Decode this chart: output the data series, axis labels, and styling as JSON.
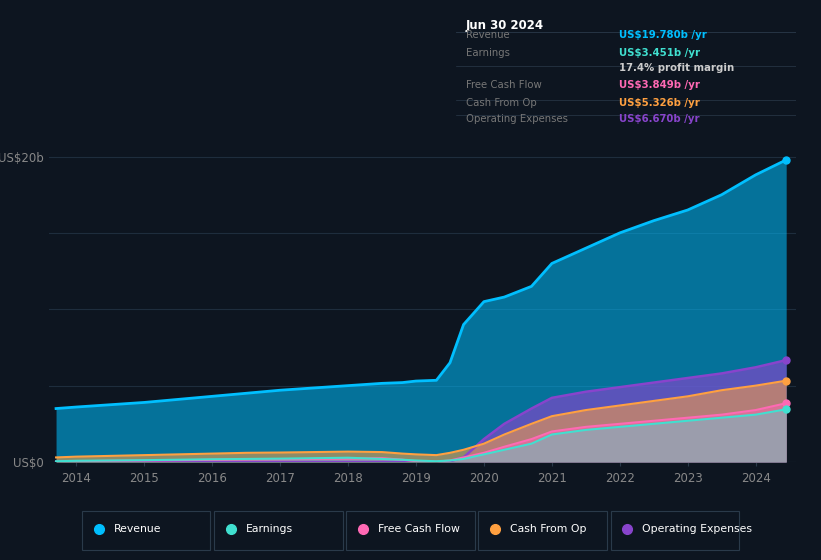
{
  "background_color": "#0d1520",
  "plot_bg_color": "#0d1520",
  "years": [
    2013.7,
    2014.0,
    2014.5,
    2015.0,
    2015.5,
    2016.0,
    2016.5,
    2017.0,
    2017.5,
    2018.0,
    2018.5,
    2018.8,
    2019.0,
    2019.3,
    2019.5,
    2019.7,
    2020.0,
    2020.3,
    2020.7,
    2021.0,
    2021.5,
    2022.0,
    2022.5,
    2023.0,
    2023.5,
    2024.0,
    2024.45
  ],
  "revenue": [
    3.5,
    3.6,
    3.75,
    3.9,
    4.1,
    4.3,
    4.5,
    4.7,
    4.85,
    5.0,
    5.15,
    5.2,
    5.3,
    5.35,
    6.5,
    9.0,
    10.5,
    10.8,
    11.5,
    13.0,
    14.0,
    15.0,
    15.8,
    16.5,
    17.5,
    18.8,
    19.78
  ],
  "earnings": [
    0.05,
    0.08,
    0.1,
    0.12,
    0.15,
    0.18,
    0.2,
    0.22,
    0.25,
    0.28,
    0.2,
    0.15,
    0.1,
    0.05,
    0.1,
    0.2,
    0.5,
    0.8,
    1.2,
    1.8,
    2.1,
    2.3,
    2.5,
    2.7,
    2.9,
    3.1,
    3.451
  ],
  "free_cash": [
    0.02,
    0.05,
    0.08,
    0.1,
    0.12,
    0.14,
    0.17,
    0.18,
    0.2,
    0.22,
    0.25,
    0.15,
    0.05,
    0.02,
    0.1,
    0.3,
    0.6,
    1.0,
    1.5,
    2.0,
    2.3,
    2.5,
    2.7,
    2.9,
    3.1,
    3.4,
    3.849
  ],
  "cash_from_op": [
    0.3,
    0.35,
    0.4,
    0.45,
    0.5,
    0.55,
    0.6,
    0.62,
    0.65,
    0.68,
    0.65,
    0.55,
    0.5,
    0.45,
    0.6,
    0.8,
    1.2,
    1.8,
    2.5,
    3.0,
    3.4,
    3.7,
    4.0,
    4.3,
    4.7,
    5.0,
    5.326
  ],
  "op_expenses": [
    0.0,
    0.0,
    0.0,
    0.0,
    0.0,
    0.0,
    0.0,
    0.0,
    0.0,
    0.0,
    0.0,
    0.0,
    0.0,
    0.0,
    0.05,
    0.3,
    1.5,
    2.5,
    3.5,
    4.2,
    4.6,
    4.9,
    5.2,
    5.5,
    5.8,
    6.2,
    6.67
  ],
  "colors": {
    "revenue": "#00bfff",
    "earnings": "#40e0d0",
    "free_cash": "#ff69b4",
    "cash_from_op": "#ffa040",
    "op_expenses": "#8844cc"
  },
  "ylim": [
    0,
    22
  ],
  "grid_lines": [
    5,
    10,
    15,
    20
  ],
  "ytick_positions": [
    0,
    20
  ],
  "ytick_labels": [
    "US$0",
    "US$20b"
  ],
  "xlabel_years": [
    2014,
    2015,
    2016,
    2017,
    2018,
    2019,
    2020,
    2021,
    2022,
    2023,
    2024
  ],
  "grid_color": "#1e2d3d",
  "tooltip_bg": "#060e16",
  "tooltip_border": "#2a3a4a",
  "tooltip_title": "Jun 30 2024",
  "legend": [
    {
      "label": "Revenue",
      "color": "#00bfff"
    },
    {
      "label": "Earnings",
      "color": "#40e0d0"
    },
    {
      "label": "Free Cash Flow",
      "color": "#ff69b4"
    },
    {
      "label": "Cash From Op",
      "color": "#ffa040"
    },
    {
      "label": "Operating Expenses",
      "color": "#8844cc"
    }
  ]
}
